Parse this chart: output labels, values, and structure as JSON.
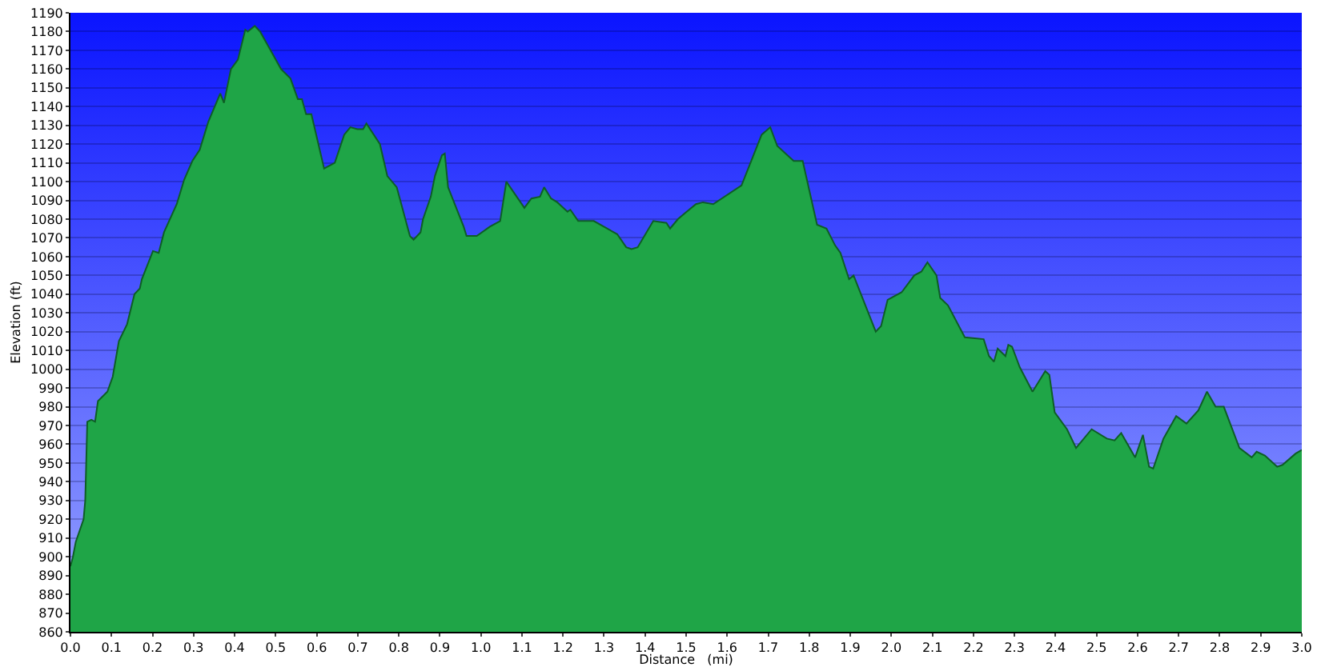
{
  "chart_data": {
    "type": "area",
    "xlabel": "Distance   (mi)",
    "ylabel": "Elevation (ft)",
    "grid": "y",
    "legend": false,
    "marker": "none",
    "line_style": "solid",
    "xlim": [
      0,
      3
    ],
    "ylim": [
      860,
      1190
    ],
    "xticks": [
      {
        "value": 0,
        "label": "0.0"
      },
      {
        "value": 0.1,
        "label": "0.1"
      },
      {
        "value": 0.2,
        "label": "0.2"
      },
      {
        "value": 0.3,
        "label": "0.3"
      },
      {
        "value": 0.4,
        "label": "0.4"
      },
      {
        "value": 0.5,
        "label": "0.5"
      },
      {
        "value": 0.6,
        "label": "0.6"
      },
      {
        "value": 0.7,
        "label": "0.7"
      },
      {
        "value": 0.8,
        "label": "0.8"
      },
      {
        "value": 0.9,
        "label": "0.9"
      },
      {
        "value": 1,
        "label": "1.0"
      },
      {
        "value": 1.1,
        "label": "1.1"
      },
      {
        "value": 1.2,
        "label": "1.2"
      },
      {
        "value": 1.3,
        "label": "1.3"
      },
      {
        "value": 1.4,
        "label": "1.4"
      },
      {
        "value": 1.5,
        "label": "1.5"
      },
      {
        "value": 1.6,
        "label": "1.6"
      },
      {
        "value": 1.7,
        "label": "1.7"
      },
      {
        "value": 1.8,
        "label": "1.8"
      },
      {
        "value": 1.9,
        "label": "1.9"
      },
      {
        "value": 2,
        "label": "2.0"
      },
      {
        "value": 2.1,
        "label": "2.1"
      },
      {
        "value": 2.2,
        "label": "2.2"
      },
      {
        "value": 2.3,
        "label": "2.3"
      },
      {
        "value": 2.4,
        "label": "2.4"
      },
      {
        "value": 2.5,
        "label": "2.5"
      },
      {
        "value": 2.6,
        "label": "2.6"
      },
      {
        "value": 2.7,
        "label": "2.7"
      },
      {
        "value": 2.8,
        "label": "2.8"
      },
      {
        "value": 2.9,
        "label": "2.9"
      },
      {
        "value": 3,
        "label": "3.0"
      }
    ],
    "yticks": [
      860,
      870,
      880,
      890,
      900,
      910,
      920,
      930,
      940,
      950,
      960,
      970,
      980,
      990,
      1000,
      1010,
      1020,
      1030,
      1040,
      1050,
      1060,
      1070,
      1080,
      1090,
      1100,
      1110,
      1120,
      1130,
      1140,
      1150,
      1160,
      1170,
      1180,
      1190
    ],
    "x": [
      0,
      0.006,
      0.013,
      0.032,
      0.036,
      0.041,
      0.051,
      0.06,
      0.067,
      0.09,
      0.103,
      0.118,
      0.138,
      0.156,
      0.169,
      0.174,
      0.201,
      0.215,
      0.228,
      0.259,
      0.277,
      0.297,
      0.315,
      0.336,
      0.365,
      0.374,
      0.391,
      0.408,
      0.426,
      0.432,
      0.449,
      0.462,
      0.485,
      0.513,
      0.536,
      0.554,
      0.564,
      0.574,
      0.587,
      0.618,
      0.644,
      0.667,
      0.682,
      0.699,
      0.713,
      0.721,
      0.754,
      0.772,
      0.795,
      0.827,
      0.836,
      0.853,
      0.859,
      0.878,
      0.888,
      0.905,
      0.912,
      0.92,
      0.958,
      0.965,
      0.99,
      1.022,
      1.047,
      1.062,
      1.106,
      1.123,
      1.144,
      1.154,
      1.171,
      1.186,
      1.211,
      1.218,
      1.237,
      1.275,
      1.332,
      1.354,
      1.367,
      1.382,
      1.42,
      1.452,
      1.461,
      1.48,
      1.496,
      1.524,
      1.541,
      1.566,
      1.635,
      1.684,
      1.705,
      1.722,
      1.762,
      1.784,
      1.819,
      1.842,
      1.863,
      1.876,
      1.897,
      1.908,
      1.962,
      1.975,
      1.991,
      2.025,
      2.056,
      2.073,
      2.088,
      2.11,
      2.119,
      2.138,
      2.179,
      2.225,
      2.238,
      2.25,
      2.259,
      2.278,
      2.285,
      2.294,
      2.313,
      2.344,
      2.375,
      2.385,
      2.398,
      2.428,
      2.45,
      2.488,
      2.525,
      2.544,
      2.56,
      2.594,
      2.613,
      2.628,
      2.638,
      2.663,
      2.694,
      2.719,
      2.748,
      2.769,
      2.79,
      2.81,
      2.848,
      2.878,
      2.89,
      2.91,
      2.94,
      2.953,
      2.985,
      3
    ],
    "series": [
      {
        "color": "#1fa547",
        "values": [
          895,
          900,
          908,
          920,
          930,
          972,
          973,
          972,
          983,
          988,
          996,
          1015,
          1024,
          1040,
          1043,
          1048,
          1063,
          1062,
          1073,
          1088,
          1101,
          1111,
          1117,
          1132,
          1147,
          1142,
          1160,
          1165,
          1181,
          1180,
          1183,
          1180,
          1171,
          1160,
          1155,
          1144,
          1144,
          1136,
          1136,
          1107,
          1110,
          1125,
          1129,
          1128,
          1128,
          1131,
          1120,
          1103,
          1097,
          1071,
          1069,
          1073,
          1080,
          1092,
          1103,
          1114,
          1115,
          1097,
          1076,
          1071,
          1071,
          1076,
          1079,
          1100,
          1086,
          1091,
          1092,
          1097,
          1091,
          1089,
          1084,
          1085,
          1079,
          1079,
          1072,
          1065,
          1064,
          1065,
          1079,
          1078,
          1075,
          1080,
          1083,
          1088,
          1089,
          1088,
          1098,
          1125,
          1129,
          1119,
          1111,
          1111,
          1077,
          1075,
          1066,
          1062,
          1048,
          1050,
          1020,
          1023,
          1037,
          1041,
          1050,
          1052,
          1057,
          1050,
          1038,
          1034,
          1017,
          1016,
          1007,
          1004,
          1011,
          1007,
          1013,
          1012,
          1001,
          988,
          999,
          997,
          977,
          968,
          958,
          968,
          963,
          962,
          966,
          953,
          965,
          948,
          947,
          963,
          975,
          971,
          978,
          988,
          980,
          980,
          958,
          953,
          956,
          954,
          948,
          949,
          955,
          957
        ]
      }
    ]
  }
}
